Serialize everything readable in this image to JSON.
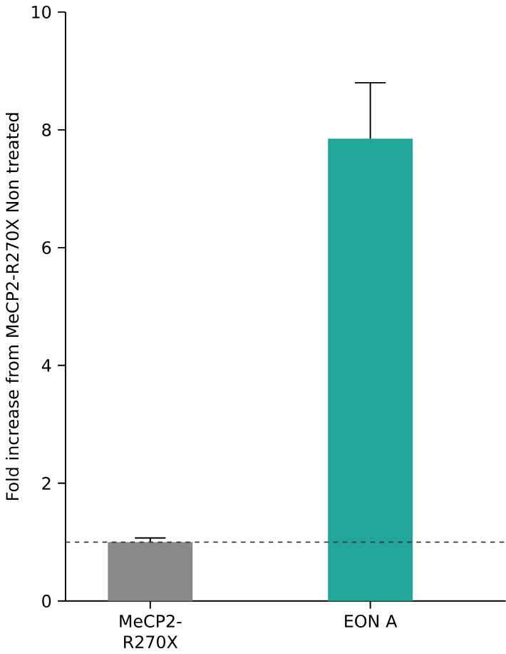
{
  "chart_data": {
    "type": "bar",
    "ylabel": "Fold increase from MeCP2-R270X Non treated",
    "categories": [
      "MeCP2-R270X",
      "EON A"
    ],
    "values": [
      1.0,
      7.85
    ],
    "colors": [
      "#888888",
      "#22a69a"
    ],
    "errors": [
      [
        1.0,
        1.07
      ],
      [
        7.85,
        8.8
      ]
    ],
    "ylim": [
      0,
      10
    ],
    "yticks": [
      0,
      2,
      4,
      6,
      8,
      10
    ],
    "ref_lines": [
      {
        "axis": "y",
        "value": 1,
        "line_style": "dashed",
        "color": "#333333"
      }
    ],
    "grid": false
  }
}
